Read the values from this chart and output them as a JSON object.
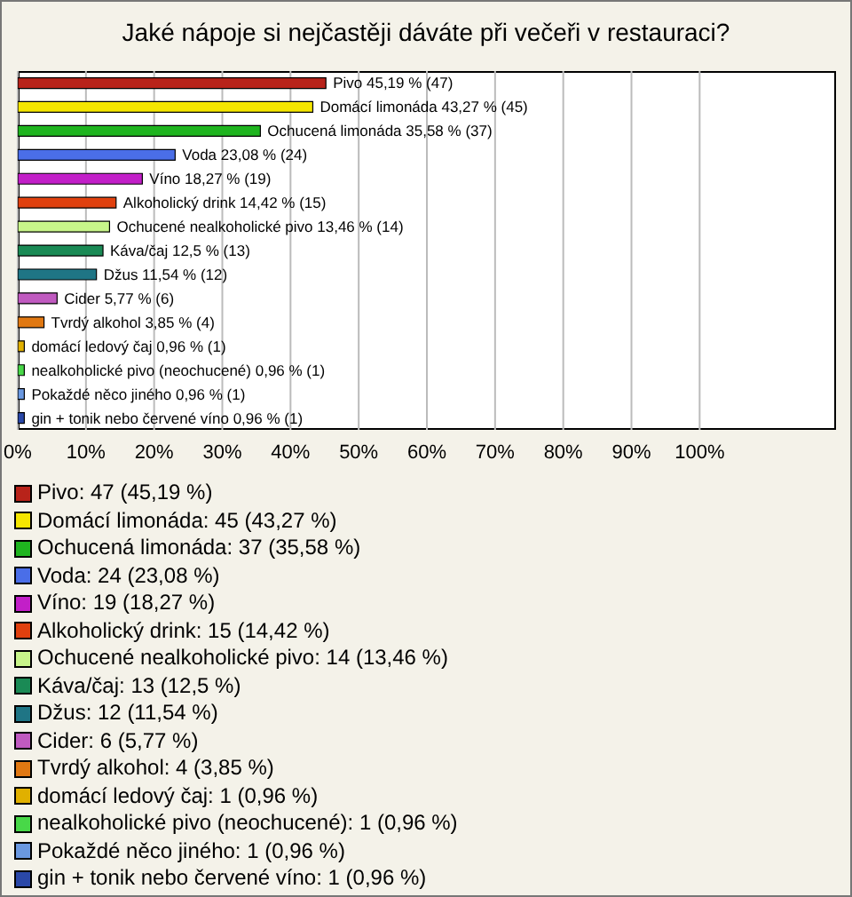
{
  "chart_data": {
    "type": "bar",
    "orientation": "horizontal",
    "title": "Jaké nápoje si nejčastěji dáváte při večeři v restauraci?",
    "categories": [
      "Pivo",
      "Domácí limonáda",
      "Ochucená limonáda",
      "Voda",
      "Víno",
      "Alkoholický drink",
      "Ochucené nealkoholické pivo",
      "Káva/čaj",
      "Džus",
      "Cider",
      "Tvrdý alkohol",
      "domácí ledový čaj",
      "nealkoholické pivo (neochucené)",
      "Pokaždé něco jiného",
      "gin + tonik nebo červené víno"
    ],
    "values": [
      45.19,
      43.27,
      35.58,
      23.08,
      18.27,
      14.42,
      13.46,
      12.5,
      11.54,
      5.77,
      3.85,
      0.96,
      0.96,
      0.96,
      0.96
    ],
    "value_labels": [
      "45,19 % (47)",
      "43,27 % (45)",
      "35,58 % (37)",
      "23,08 % (24)",
      "18,27 % (19)",
      "14,42 % (15)",
      "13,46 % (14)",
      "12,5 % (13)",
      "11,54 % (12)",
      "5,77 % (6)",
      "3,85 % (4)",
      "0,96 % (1)",
      "0,96 % (1)",
      "0,96 % (1)",
      "0,96 % (1)"
    ],
    "colors": [
      "#b8231a",
      "#f5e600",
      "#1fb41f",
      "#4a6ee8",
      "#c21fc8",
      "#e0400e",
      "#c8f58a",
      "#1a8a55",
      "#1f7585",
      "#c05ac0",
      "#e07812",
      "#e0b000",
      "#48d848",
      "#6a98e0",
      "#2a48a8"
    ],
    "xlim": [
      0,
      120
    ],
    "xticks": [
      {
        "value": 0,
        "label": "0%"
      },
      {
        "value": 10,
        "label": "10%"
      },
      {
        "value": 20,
        "label": "20%"
      },
      {
        "value": 30,
        "label": "30%"
      },
      {
        "value": 40,
        "label": "40%"
      },
      {
        "value": 50,
        "label": "50%"
      },
      {
        "value": 60,
        "label": "60%"
      },
      {
        "value": 70,
        "label": "70%"
      },
      {
        "value": 80,
        "label": "80%"
      },
      {
        "value": 90,
        "label": "90%"
      },
      {
        "value": 100,
        "label": "100%"
      }
    ],
    "grid": "x",
    "tick_labels": "x",
    "annotations": [
      "Pivo: 47 (45,19 %)",
      "Domácí limonáda: 45 (43,27 %)",
      "Ochucená limonáda: 37 (35,58 %)",
      "Voda: 24 (23,08 %)",
      "Víno: 19 (18,27 %)",
      "Alkoholický drink: 15 (14,42 %)",
      "Ochucené nealkoholické pivo: 14 (13,46 %)",
      "Káva/čaj: 13 (12,5 %)",
      "Džus: 12 (11,54 %)",
      "Cider: 6 (5,77 %)",
      "Tvrdý alkohol: 4 (3,85 %)",
      "domácí ledový čaj: 1 (0,96 %)",
      "nealkoholické pivo (neochucené): 1 (0,96 %)",
      "Pokaždé něco jiného: 1 (0,96 %)",
      "gin + tonik nebo červené víno: 1 (0,96 %)"
    ]
  }
}
